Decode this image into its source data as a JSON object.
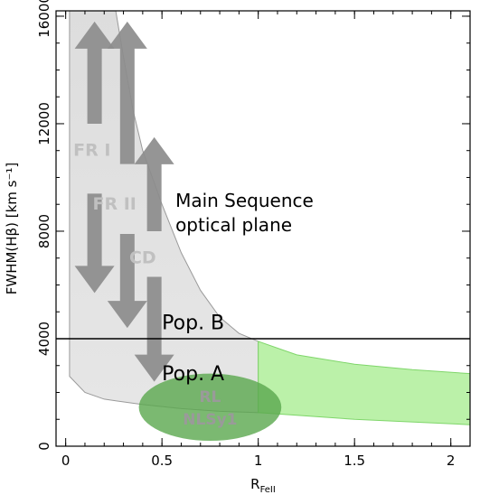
{
  "chart_data": {
    "type": "area",
    "xlabel": "R",
    "xlabel_sub": "FeII",
    "ylabel": "FWHM(Hβ) [km s⁻¹]",
    "xlim": [
      -0.05,
      2.1
    ],
    "ylim": [
      0,
      16200
    ],
    "x_ticks": [
      0,
      0.5,
      1,
      1.5,
      2
    ],
    "x_tick_labels": [
      "0",
      "0.5",
      "1",
      "1.5",
      "2"
    ],
    "y_ticks": [
      0,
      4000,
      8000,
      12000,
      16000
    ],
    "y_tick_labels": [
      "0",
      "4000",
      "8000",
      "12000",
      "16000"
    ],
    "pop_boundary": 4000,
    "labels": {
      "main_sequence_1": "Main Sequence",
      "main_sequence_2": "optical plane",
      "pop_b": "Pop. B",
      "pop_a": "Pop. A",
      "fr1": "FR I",
      "fr2": "FR II",
      "cd": "CD",
      "rl": "RL",
      "nlsy1": "NLSy1"
    },
    "series": [
      {
        "kind": "grey-region",
        "x_left": 0.02,
        "x_right": 1.0,
        "upper_edge": [
          [
            0.26,
            16200
          ],
          [
            0.3,
            14500
          ],
          [
            0.35,
            12500
          ],
          [
            0.4,
            11000
          ],
          [
            0.5,
            9000
          ],
          [
            0.6,
            7200
          ],
          [
            0.7,
            5800
          ],
          [
            0.8,
            4800
          ],
          [
            0.9,
            4200
          ],
          [
            1.0,
            3900
          ]
        ],
        "lower_edge": [
          [
            0.02,
            2600
          ],
          [
            0.1,
            2000
          ],
          [
            0.2,
            1750
          ],
          [
            0.4,
            1550
          ],
          [
            0.6,
            1400
          ],
          [
            0.8,
            1300
          ],
          [
            1.0,
            1250
          ]
        ]
      },
      {
        "kind": "green-band",
        "upper_edge": [
          [
            1.0,
            3900
          ],
          [
            1.2,
            3400
          ],
          [
            1.5,
            3050
          ],
          [
            1.8,
            2850
          ],
          [
            2.1,
            2700
          ]
        ],
        "lower_edge": [
          [
            1.0,
            1250
          ],
          [
            1.5,
            1000
          ],
          [
            2.1,
            800
          ]
        ]
      },
      {
        "kind": "ellipse",
        "center": [
          0.75,
          1450
        ],
        "radius_x": 0.37,
        "radius_y": 1250
      }
    ],
    "arrows": [
      {
        "dir": "up",
        "x": 0.15,
        "from": 12000,
        "to": 15800
      },
      {
        "dir": "up",
        "x": 0.32,
        "from": 10500,
        "to": 15800
      },
      {
        "dir": "up",
        "x": 0.46,
        "from": 8000,
        "to": 11500
      },
      {
        "dir": "down",
        "x": 0.15,
        "from": 9400,
        "to": 5700
      },
      {
        "dir": "down",
        "x": 0.32,
        "from": 7900,
        "to": 4400
      },
      {
        "dir": "down",
        "x": 0.46,
        "from": 6300,
        "to": 2400
      }
    ]
  }
}
